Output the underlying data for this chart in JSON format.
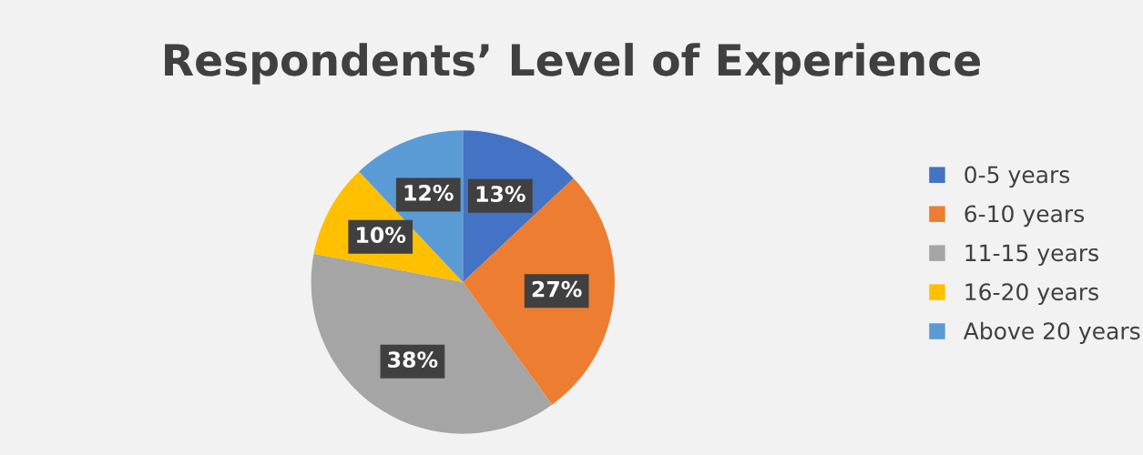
{
  "chart_data": {
    "type": "pie",
    "title": "Respondents’ Level of Experience",
    "categories": [
      "0-5 years",
      "6-10 years",
      "11-15 years",
      "16-20 years",
      "Above 20 years"
    ],
    "values": [
      13,
      27,
      38,
      10,
      12
    ],
    "value_labels": [
      "13%",
      "27%",
      "38%",
      "10%",
      "12%"
    ],
    "colors": [
      "#4472c4",
      "#ed7d31",
      "#a5a5a5",
      "#ffc000",
      "#5b9bd5"
    ],
    "legend": "right"
  }
}
